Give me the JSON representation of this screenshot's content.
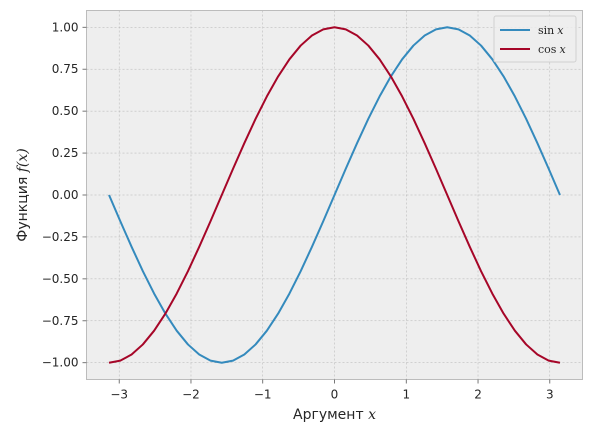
{
  "chart_data": {
    "type": "line",
    "title": "",
    "xlabel": {
      "text": "Аргумент ",
      "math": "x"
    },
    "ylabel": {
      "text": "Функция ",
      "math": "f(x)"
    },
    "xlim": [
      -3.4557,
      3.4557
    ],
    "ylim": [
      -1.1,
      1.1
    ],
    "xticks": [
      -3,
      -2,
      -1,
      0,
      1,
      2,
      3
    ],
    "xtick_labels": [
      "−3",
      "−2",
      "−1",
      "0",
      "1",
      "2",
      "3"
    ],
    "yticks": [
      -1.0,
      -0.75,
      -0.5,
      -0.25,
      0.0,
      0.25,
      0.5,
      0.75,
      1.0
    ],
    "ytick_labels": [
      "−1.00",
      "−0.75",
      "−0.50",
      "−0.25",
      "0.00",
      "0.25",
      "0.50",
      "0.75",
      "1.00"
    ],
    "grid": true,
    "legend_position": "top-right",
    "background": "#eeeeee",
    "grid_color": "#b2b2b2",
    "x": [
      -3.1416,
      -2.9845,
      -2.8274,
      -2.6704,
      -2.5133,
      -2.3562,
      -2.1991,
      -2.042,
      -1.885,
      -1.7279,
      -1.5708,
      -1.4137,
      -1.2566,
      -1.0996,
      -0.9425,
      -0.7854,
      -0.6283,
      -0.4712,
      -0.3142,
      -0.1571,
      0.0,
      0.1571,
      0.3142,
      0.4712,
      0.6283,
      0.7854,
      0.9425,
      1.0996,
      1.2566,
      1.4137,
      1.5708,
      1.7279,
      1.885,
      2.042,
      2.1991,
      2.3562,
      2.5133,
      2.6704,
      2.8274,
      2.9845,
      3.1416
    ],
    "series": [
      {
        "name": "sin x",
        "label_fn": "sin",
        "label_var": "x",
        "color": "#348abd",
        "values": [
          0.0,
          -0.1564,
          -0.309,
          -0.454,
          -0.5878,
          -0.7071,
          -0.809,
          -0.891,
          -0.9511,
          -0.9877,
          -1.0,
          -0.9877,
          -0.9511,
          -0.891,
          -0.809,
          -0.7071,
          -0.5878,
          -0.454,
          -0.309,
          -0.1564,
          0.0,
          0.1564,
          0.309,
          0.454,
          0.5878,
          0.7071,
          0.809,
          0.891,
          0.9511,
          0.9877,
          1.0,
          0.9877,
          0.9511,
          0.891,
          0.809,
          0.7071,
          0.5878,
          0.454,
          0.309,
          0.1564,
          0.0
        ]
      },
      {
        "name": "cos x",
        "label_fn": "cos",
        "label_var": "x",
        "color": "#a60628",
        "values": [
          -1.0,
          -0.9877,
          -0.9511,
          -0.891,
          -0.809,
          -0.7071,
          -0.5878,
          -0.454,
          -0.309,
          -0.1564,
          0.0,
          0.1564,
          0.309,
          0.454,
          0.5878,
          0.7071,
          0.809,
          0.891,
          0.9511,
          0.9877,
          1.0,
          0.9877,
          0.9511,
          0.891,
          0.809,
          0.7071,
          0.5878,
          0.454,
          0.309,
          0.1564,
          0.0,
          -0.1564,
          -0.309,
          -0.454,
          -0.5878,
          -0.7071,
          -0.809,
          -0.891,
          -0.9511,
          -0.9877,
          -1.0
        ]
      }
    ]
  }
}
